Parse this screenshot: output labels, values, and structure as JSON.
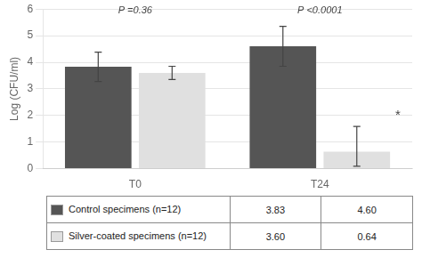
{
  "chart_data": {
    "type": "bar",
    "categories": [
      "T0",
      "T24"
    ],
    "ylabel": "Log (CFU/ml)",
    "ylim": [
      0,
      6
    ],
    "yticks": [
      0,
      1,
      2,
      3,
      4,
      5,
      6
    ],
    "grid": true,
    "data_labels": true,
    "series": [
      {
        "name": "Control specimens (n=12)",
        "color": "#555555",
        "values": [
          3.83,
          4.6
        ],
        "value_labels": [
          "3.83",
          "4.60"
        ],
        "error_up": [
          0.55,
          0.75
        ],
        "error_down": [
          0.55,
          0.75
        ]
      },
      {
        "name": "Silver-coated specimens (n=12)",
        "color": "#e0e0e0",
        "values": [
          3.6,
          0.64
        ],
        "value_labels": [
          "3.60",
          "0.64"
        ],
        "error_up": [
          0.25,
          0.95
        ],
        "error_down": [
          0.25,
          0.55
        ]
      }
    ],
    "annotations": [
      {
        "text": "P =0.36",
        "x": "T0",
        "y": 5.75
      },
      {
        "text": "P <0.0001",
        "x": "T24",
        "y": 5.75
      },
      {
        "text": "*",
        "x": "T24",
        "y": 2.0
      }
    ]
  }
}
